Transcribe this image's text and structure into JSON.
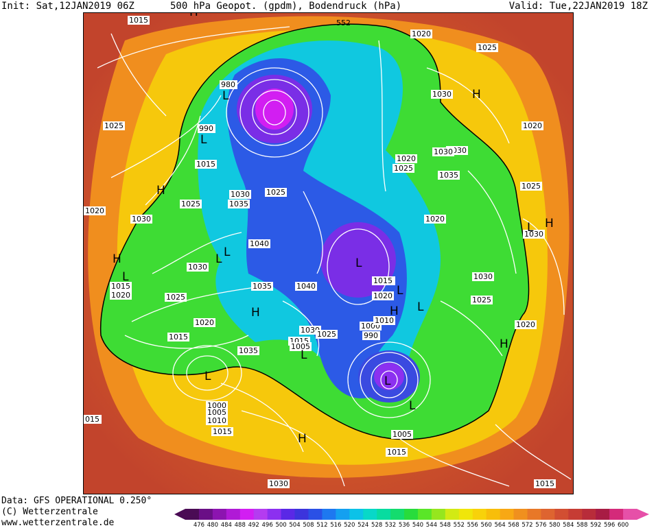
{
  "header": {
    "init": "Init: Sat,12JAN2019 06Z",
    "title": "500 hPa Geopot. (gpdm), Bodendruck (hPa)",
    "valid": "Valid: Tue,22JAN2019 18Z"
  },
  "footer": {
    "data_source": "Data: GFS OPERATIONAL 0.250°",
    "copyright": "(C) Wetterzentrale",
    "url": "www.wetterzentrale.de"
  },
  "map": {
    "contour_label_552": "552",
    "isobar_labels": [
      "1015",
      "980",
      "990",
      "1015",
      "1025",
      "1030",
      "1035",
      "1025",
      "1020",
      "1030",
      "1025",
      "1040",
      "1030",
      "1015",
      "1020",
      "1025",
      "1020",
      "1015",
      "1035",
      "1035",
      "1040",
      "1030",
      "1025",
      "1015",
      "1005",
      "1000",
      "1005",
      "1010",
      "1015",
      "1000",
      "990",
      "1010",
      "1015",
      "1020",
      "1025",
      "1030",
      "1035",
      "1030",
      "1025",
      "1030",
      "1020",
      "1025",
      "1030",
      "1020",
      "1020",
      "1015",
      "1005",
      "1015",
      "1030",
      "1020",
      "1025",
      "1015",
      "1020",
      "1030",
      "015"
    ],
    "pressure_centers": [
      "L",
      "L",
      "H",
      "L",
      "L",
      "L",
      "H",
      "H",
      "L",
      "L",
      "H",
      "L",
      "L",
      "H",
      "H",
      "L",
      "H",
      "H",
      "L",
      "L",
      "L",
      "H"
    ]
  },
  "legend": {
    "ticks": [
      "476",
      "480",
      "484",
      "488",
      "492",
      "496",
      "500",
      "504",
      "508",
      "512",
      "516",
      "520",
      "524",
      "528",
      "532",
      "536",
      "540",
      "544",
      "548",
      "552",
      "556",
      "560",
      "564",
      "568",
      "572",
      "576",
      "580",
      "584",
      "588",
      "592",
      "596",
      "600"
    ],
    "colors": [
      "#4a0b54",
      "#6a0f86",
      "#8c14b0",
      "#b01ad6",
      "#d21ef2",
      "#b43cf0",
      "#8c30f0",
      "#5a28e6",
      "#3c34dc",
      "#2a50e6",
      "#1e78f0",
      "#14a0f0",
      "#0cc2e8",
      "#08d8c8",
      "#08dca0",
      "#14dc6e",
      "#28dc3c",
      "#5ae628",
      "#96e61e",
      "#d2ea14",
      "#f0e60a",
      "#f8d20a",
      "#f8be0a",
      "#f8a814",
      "#f0901e",
      "#e87828",
      "#de6430",
      "#d24e32",
      "#c63c34",
      "#b82c3a",
      "#a81c44",
      "#d42a7a",
      "#e650a8"
    ]
  }
}
